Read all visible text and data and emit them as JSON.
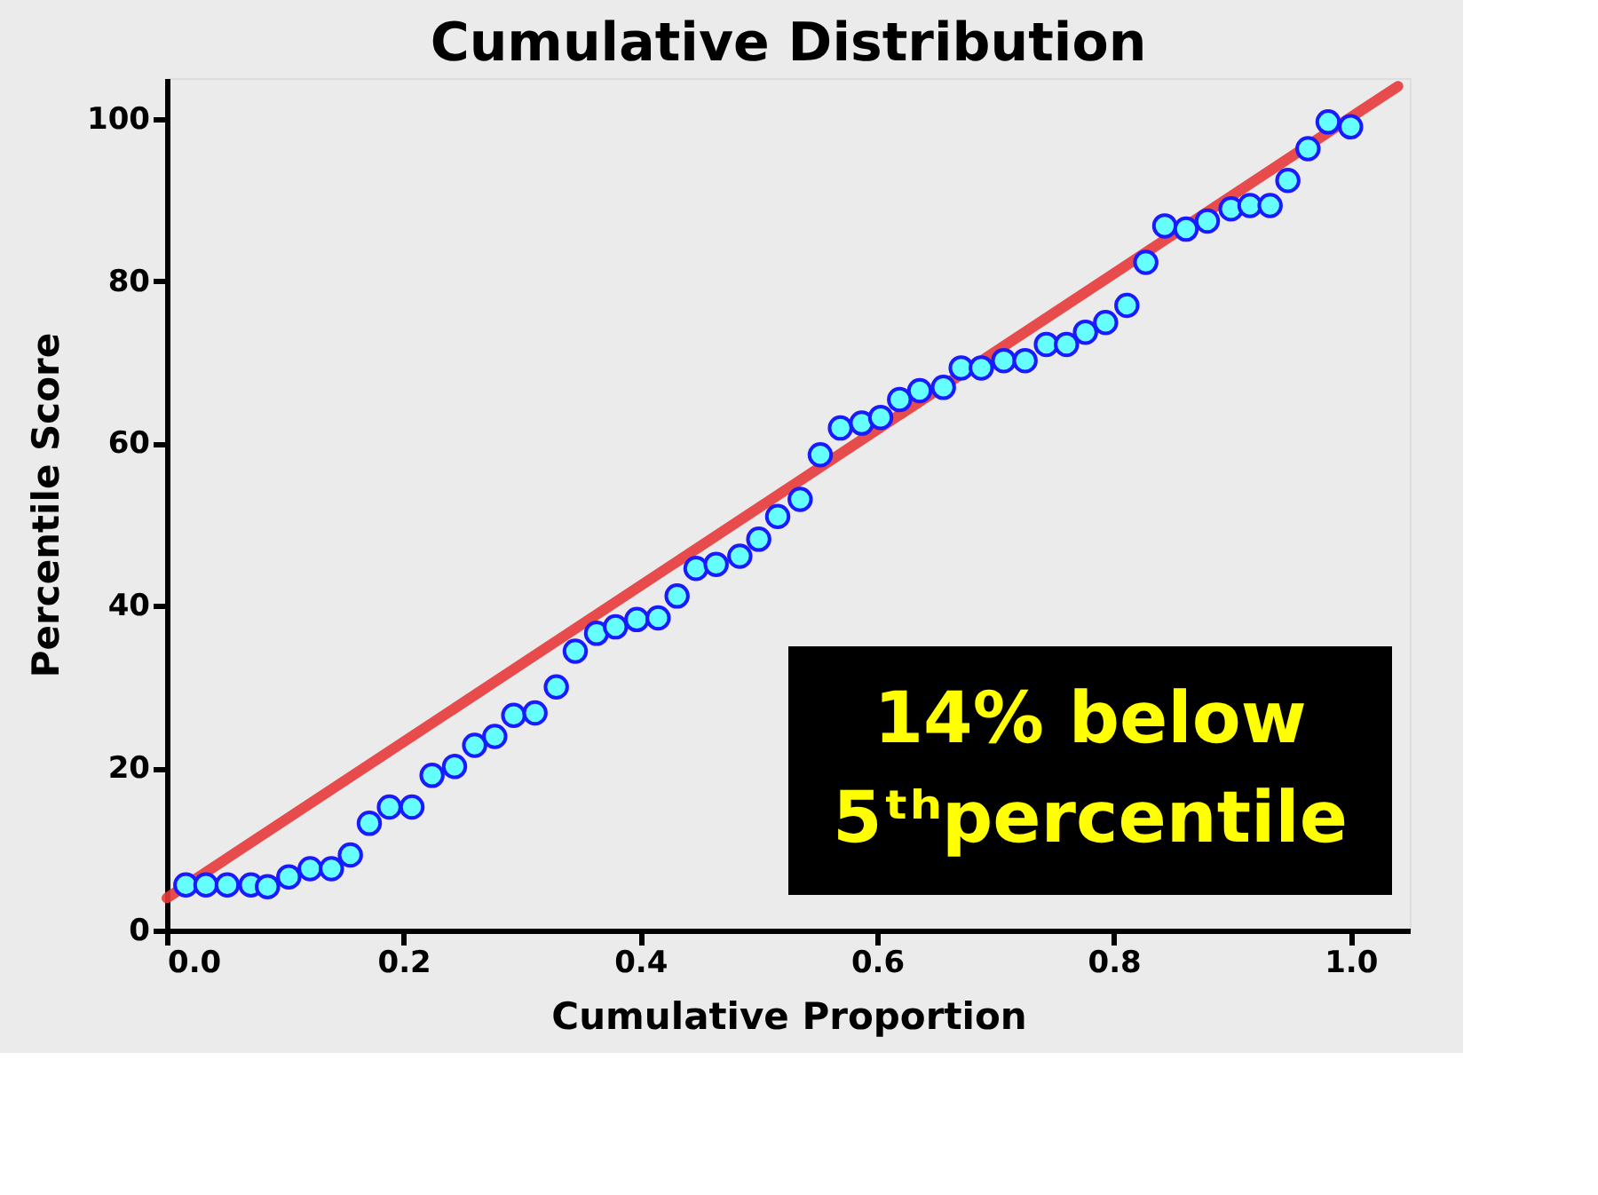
{
  "chart_data": {
    "type": "scatter",
    "title": "Cumulative Distribution",
    "xlabel": "Cumulative Proportion",
    "ylabel": "Percentile Score",
    "xlim": [
      0,
      1.05
    ],
    "ylim": [
      0,
      105
    ],
    "xticks": [
      {
        "value": 0,
        "label": "0.0"
      },
      {
        "value": 0.2,
        "label": "0.2"
      },
      {
        "value": 0.4,
        "label": "0.4"
      },
      {
        "value": 0.6,
        "label": "0.6"
      },
      {
        "value": 0.8,
        "label": "0.8"
      },
      {
        "value": 1,
        "label": "1.0"
      }
    ],
    "yticks": [
      0,
      20,
      40,
      60,
      80,
      100
    ],
    "grid": false,
    "marker": "circle",
    "annotations": [
      "14% below 5ᵗʰpercentile"
    ],
    "series": [
      {
        "type": "line",
        "marker": "none",
        "color": "#e83a3a",
        "x": [
          0,
          1.04
        ],
        "values": [
          4,
          104
        ]
      },
      {
        "color": "#66ffff",
        "x": [
          0.016,
          0.033,
          0.051,
          0.071,
          0.085,
          0.103,
          0.121,
          0.139,
          0.155,
          0.171,
          0.188,
          0.207,
          0.224,
          0.243,
          0.26,
          0.277,
          0.293,
          0.311,
          0.329,
          0.345,
          0.363,
          0.379,
          0.397,
          0.415,
          0.431,
          0.447,
          0.464,
          0.484,
          0.5,
          0.516,
          0.535,
          0.552,
          0.569,
          0.587,
          0.603,
          0.619,
          0.636,
          0.656,
          0.671,
          0.688,
          0.707,
          0.725,
          0.743,
          0.76,
          0.776,
          0.793,
          0.811,
          0.827,
          0.843,
          0.861,
          0.879,
          0.899,
          0.915,
          0.932,
          0.947,
          0.964,
          0.981,
          1.0
        ],
        "values": [
          5.6,
          5.6,
          5.6,
          5.6,
          5.4,
          6.6,
          7.6,
          7.6,
          9.3,
          13.2,
          15.2,
          15.2,
          19.1,
          20.2,
          22.8,
          23.9,
          26.5,
          26.8,
          30.0,
          34.4,
          36.6,
          37.4,
          38.3,
          38.5,
          41.2,
          44.6,
          45.1,
          46.1,
          48.2,
          51.0,
          53.1,
          58.6,
          61.9,
          62.5,
          63.2,
          65.4,
          66.5,
          66.9,
          69.3,
          69.3,
          70.2,
          70.2,
          72.2,
          72.2,
          73.7,
          74.9,
          77.0,
          82.3,
          86.8,
          86.4,
          87.4,
          88.9,
          89.3,
          89.3,
          92.4,
          96.3,
          99.6,
          99.0
        ]
      }
    ]
  }
}
